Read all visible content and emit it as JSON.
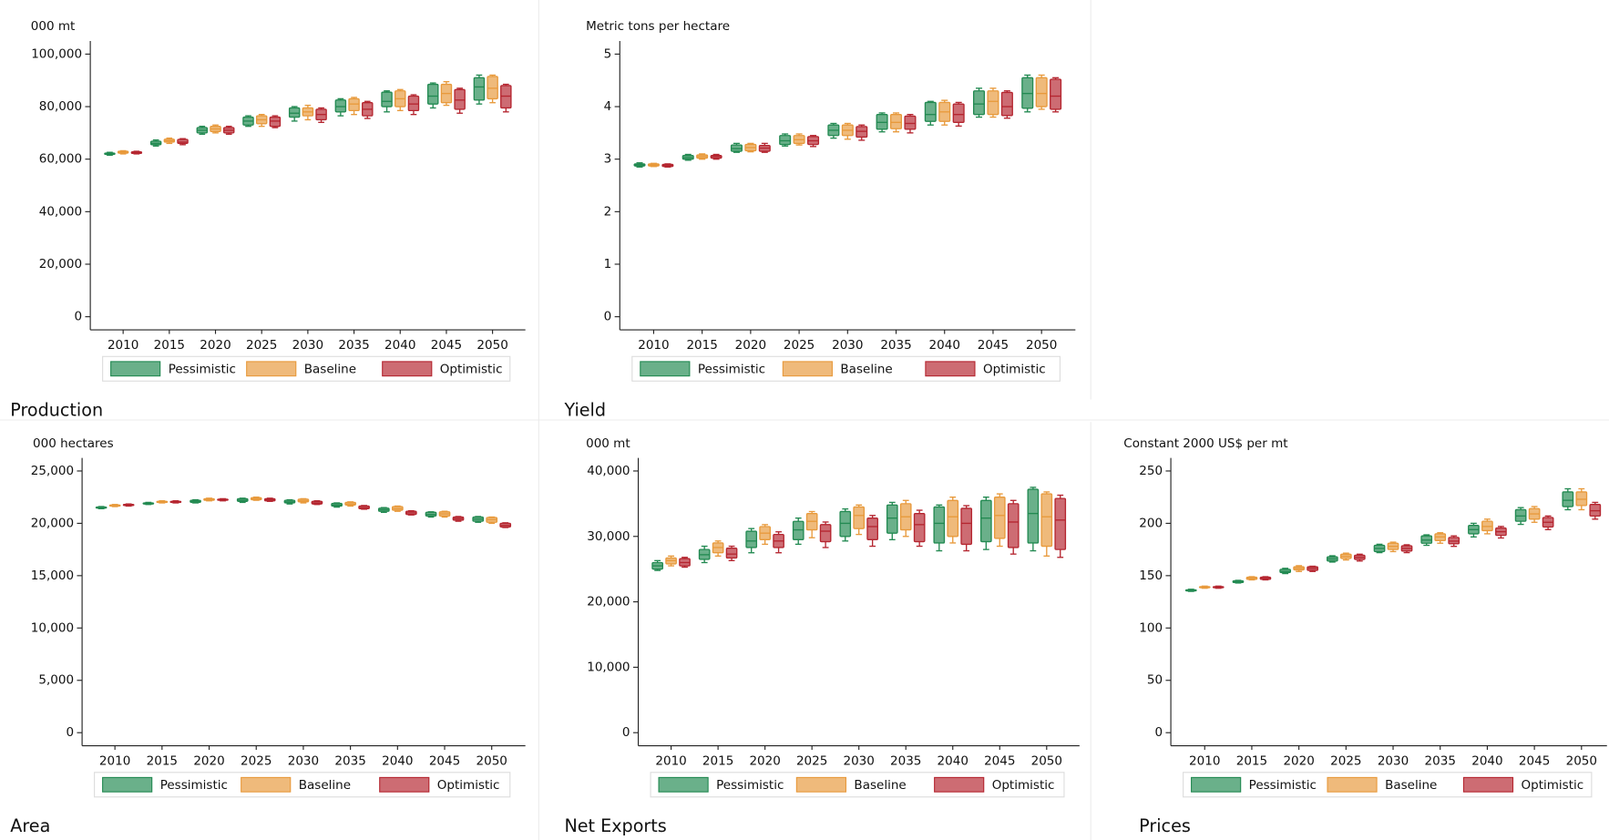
{
  "chart_data": [
    {
      "type": "box",
      "title": "Production",
      "ylabel": "000 mt",
      "categories": [
        "2010",
        "2015",
        "2020",
        "2025",
        "2030",
        "2035",
        "2040",
        "2045",
        "2050"
      ],
      "ylim": [
        -5000,
        105000
      ],
      "yticks": [
        0,
        {
          "value": 20000,
          "label": "20,000"
        },
        {
          "value": 40000,
          "label": "40,000"
        },
        {
          "value": 60000,
          "label": "60,000"
        },
        {
          "value": 80000,
          "label": "80,000"
        },
        {
          "value": 100000,
          "label": "100,000"
        }
      ],
      "series": [
        {
          "name": "Pessimistic",
          "color": "#238a52",
          "low": [
            61500,
            65000,
            69500,
            72500,
            74500,
            76500,
            78000,
            79500,
            81000
          ],
          "q1": [
            61800,
            65500,
            70000,
            73000,
            76000,
            78000,
            80000,
            81000,
            82500
          ],
          "median": [
            62000,
            66000,
            71000,
            74500,
            77500,
            80000,
            82000,
            84000,
            87500
          ],
          "q3": [
            62300,
            66800,
            72000,
            76000,
            79500,
            82500,
            85500,
            88500,
            91000
          ],
          "high": [
            62600,
            67300,
            72500,
            76500,
            80000,
            83000,
            86000,
            89000,
            92000
          ]
        },
        {
          "name": "Baseline",
          "color": "#e89a3c",
          "low": [
            62000,
            66000,
            70000,
            72500,
            75000,
            77000,
            78500,
            80500,
            81500
          ],
          "q1": [
            62300,
            66500,
            70500,
            73500,
            76500,
            78500,
            80000,
            81500,
            83000
          ],
          "median": [
            62600,
            67000,
            71500,
            75000,
            78000,
            81000,
            83000,
            85000,
            87000
          ],
          "q3": [
            63000,
            67600,
            72500,
            76500,
            79500,
            83000,
            86000,
            88500,
            91500
          ],
          "high": [
            63200,
            68000,
            73000,
            77000,
            80500,
            83500,
            86500,
            89500,
            92000
          ]
        },
        {
          "name": "Optimistic",
          "color": "#b52630",
          "low": [
            62000,
            65500,
            69500,
            72000,
            74000,
            75500,
            77000,
            77500,
            78000
          ],
          "q1": [
            62200,
            66000,
            70000,
            72500,
            75000,
            76500,
            78500,
            79000,
            79500
          ],
          "median": [
            62500,
            66500,
            71000,
            74500,
            77000,
            79000,
            81000,
            82500,
            84000
          ],
          "q3": [
            62800,
            67500,
            72000,
            76000,
            79000,
            81500,
            84000,
            86500,
            88000
          ],
          "high": [
            63000,
            67800,
            72500,
            76500,
            79500,
            82000,
            84500,
            87000,
            88500
          ]
        }
      ]
    },
    {
      "type": "box",
      "title": "Yield",
      "ylabel": "Metric tons per hectare",
      "categories": [
        "2010",
        "2015",
        "2020",
        "2025",
        "2030",
        "2035",
        "2040",
        "2045",
        "2050"
      ],
      "ylim": [
        -0.25,
        5.25
      ],
      "yticks": [
        0,
        1,
        2,
        3,
        4,
        5
      ],
      "series": [
        {
          "name": "Pessimistic",
          "color": "#238a52",
          "low": [
            2.85,
            2.98,
            3.13,
            3.25,
            3.4,
            3.52,
            3.65,
            3.8,
            3.9
          ],
          "q1": [
            2.87,
            3.0,
            3.15,
            3.28,
            3.45,
            3.57,
            3.72,
            3.85,
            3.97
          ],
          "median": [
            2.89,
            3.03,
            3.2,
            3.35,
            3.55,
            3.7,
            3.85,
            4.05,
            4.25
          ],
          "q3": [
            2.91,
            3.07,
            3.27,
            3.45,
            3.65,
            3.85,
            4.08,
            4.3,
            4.55
          ],
          "high": [
            2.93,
            3.09,
            3.3,
            3.48,
            3.68,
            3.88,
            4.1,
            4.35,
            4.6
          ]
        },
        {
          "name": "Baseline",
          "color": "#e89a3c",
          "low": [
            2.86,
            3.0,
            3.14,
            3.27,
            3.38,
            3.52,
            3.65,
            3.8,
            3.95
          ],
          "q1": [
            2.87,
            3.02,
            3.16,
            3.3,
            3.45,
            3.58,
            3.72,
            3.85,
            4.0
          ],
          "median": [
            2.89,
            3.05,
            3.22,
            3.37,
            3.55,
            3.7,
            3.9,
            4.1,
            4.25
          ],
          "q3": [
            2.91,
            3.08,
            3.28,
            3.45,
            3.65,
            3.85,
            4.08,
            4.3,
            4.55
          ],
          "high": [
            2.92,
            3.1,
            3.3,
            3.48,
            3.68,
            3.88,
            4.12,
            4.35,
            4.6
          ]
        },
        {
          "name": "Optimistic",
          "color": "#b52630",
          "low": [
            2.85,
            3.0,
            3.13,
            3.24,
            3.36,
            3.5,
            3.63,
            3.78,
            3.9
          ],
          "q1": [
            2.86,
            3.02,
            3.15,
            3.28,
            3.42,
            3.57,
            3.7,
            3.83,
            3.95
          ],
          "median": [
            2.88,
            3.05,
            3.21,
            3.35,
            3.53,
            3.68,
            3.85,
            4.0,
            4.2
          ],
          "q3": [
            2.9,
            3.07,
            3.26,
            3.43,
            3.62,
            3.82,
            4.05,
            4.27,
            4.52
          ],
          "high": [
            2.91,
            3.09,
            3.3,
            3.45,
            3.65,
            3.85,
            4.08,
            4.3,
            4.55
          ]
        }
      ]
    },
    {
      "type": "box",
      "title": "Area",
      "ylabel": "000 hectares",
      "categories": [
        "2010",
        "2015",
        "2020",
        "2025",
        "2030",
        "2035",
        "2040",
        "2045",
        "2050"
      ],
      "ylim": [
        -1250,
        26250
      ],
      "yticks": [
        0,
        {
          "value": 5000,
          "label": "5,000"
        },
        {
          "value": 10000,
          "label": "10,000"
        },
        {
          "value": 15000,
          "label": "15,000"
        },
        {
          "value": 20000,
          "label": "20,000"
        },
        {
          "value": 25000,
          "label": "25,000"
        }
      ],
      "series": [
        {
          "name": "Pessimistic",
          "color": "#238a52",
          "low": [
            21400,
            21800,
            21950,
            22000,
            21850,
            21550,
            21050,
            20600,
            20100
          ],
          "q1": [
            21450,
            21850,
            22000,
            22100,
            21950,
            21650,
            21150,
            20700,
            20200
          ],
          "median": [
            21500,
            21900,
            22100,
            22200,
            22050,
            21750,
            21300,
            20850,
            20400
          ],
          "q3": [
            21550,
            21950,
            22200,
            22350,
            22200,
            21900,
            21450,
            21050,
            20600
          ],
          "high": [
            21600,
            22000,
            22250,
            22400,
            22250,
            21950,
            21500,
            21100,
            20650
          ]
        },
        {
          "name": "Baseline",
          "color": "#e89a3c",
          "low": [
            21600,
            21950,
            22150,
            22200,
            21950,
            21650,
            21150,
            20600,
            20000
          ],
          "q1": [
            21650,
            22000,
            22200,
            22250,
            22050,
            21750,
            21250,
            20700,
            20100
          ],
          "median": [
            21700,
            22050,
            22300,
            22350,
            22150,
            21850,
            21400,
            20900,
            20350
          ],
          "q3": [
            21750,
            22100,
            22350,
            22450,
            22300,
            22000,
            21600,
            21100,
            20550
          ],
          "high": [
            21800,
            22150,
            22400,
            22500,
            22350,
            22050,
            21650,
            21150,
            20600
          ]
        },
        {
          "name": "Optimistic",
          "color": "#b52630",
          "low": [
            21650,
            21950,
            22150,
            22100,
            21800,
            21350,
            20800,
            20200,
            19600
          ],
          "q1": [
            21700,
            22000,
            22200,
            22150,
            21850,
            21400,
            20850,
            20300,
            19650
          ],
          "median": [
            21750,
            22050,
            22250,
            22250,
            21950,
            21500,
            21000,
            20450,
            19800
          ],
          "q3": [
            21800,
            22100,
            22300,
            22350,
            22100,
            21650,
            21150,
            20600,
            20000
          ],
          "high": [
            21850,
            22150,
            22350,
            22400,
            22150,
            21700,
            21200,
            20650,
            20050
          ]
        }
      ]
    },
    {
      "type": "box",
      "title": "Net Exports",
      "ylabel": "000 mt",
      "categories": [
        "2010",
        "2015",
        "2020",
        "2025",
        "2030",
        "2035",
        "2040",
        "2045",
        "2050"
      ],
      "ylim": [
        -2000,
        42000
      ],
      "yticks": [
        0,
        {
          "value": 10000,
          "label": "10,000"
        },
        {
          "value": 20000,
          "label": "20,000"
        },
        {
          "value": 30000,
          "label": "30,000"
        },
        {
          "value": 40000,
          "label": "40,000"
        }
      ],
      "series": [
        {
          "name": "Pessimistic",
          "color": "#238a52",
          "low": [
            24800,
            26000,
            27500,
            28800,
            29300,
            29500,
            27800,
            28000,
            27800
          ],
          "q1": [
            25000,
            26500,
            28300,
            29500,
            30000,
            30500,
            29000,
            29200,
            29000
          ],
          "median": [
            25500,
            27200,
            29300,
            31000,
            32000,
            32800,
            32000,
            32800,
            33500
          ],
          "q3": [
            26000,
            28000,
            30800,
            32300,
            33800,
            34800,
            34500,
            35500,
            37200
          ],
          "high": [
            26300,
            28500,
            31200,
            32800,
            34200,
            35200,
            34800,
            36000,
            37500
          ]
        },
        {
          "name": "Baseline",
          "color": "#e89a3c",
          "low": [
            25500,
            27000,
            28800,
            29800,
            30300,
            30000,
            29000,
            28500,
            27000
          ],
          "q1": [
            25800,
            27500,
            29500,
            31000,
            31200,
            31000,
            30000,
            29700,
            28500
          ],
          "median": [
            26300,
            28300,
            30500,
            32300,
            33200,
            33000,
            33000,
            33200,
            33000
          ],
          "q3": [
            26700,
            29000,
            31500,
            33500,
            34500,
            35000,
            35500,
            36000,
            36500
          ],
          "high": [
            27000,
            29300,
            31800,
            33800,
            34800,
            35500,
            36000,
            36500,
            36800
          ]
        },
        {
          "name": "Optimistic",
          "color": "#b52630",
          "low": [
            25300,
            26300,
            27500,
            28300,
            28500,
            28500,
            27800,
            27300,
            26800
          ],
          "q1": [
            25500,
            26700,
            28300,
            29200,
            29500,
            29200,
            28800,
            28300,
            28000
          ],
          "median": [
            26000,
            27300,
            29300,
            30800,
            31500,
            31800,
            32000,
            32200,
            32500
          ],
          "q3": [
            26600,
            28200,
            30300,
            31800,
            32800,
            33500,
            34300,
            35000,
            35800
          ],
          "high": [
            26800,
            28500,
            30700,
            32200,
            33200,
            34000,
            34700,
            35500,
            36300
          ]
        }
      ]
    },
    {
      "type": "box",
      "title": "Prices",
      "ylabel": "Constant 2000 US$ per mt",
      "categories": [
        "2010",
        "2015",
        "2020",
        "2025",
        "2030",
        "2035",
        "2040",
        "2045",
        "2050"
      ],
      "ylim": [
        -12.5,
        262.5
      ],
      "yticks": [
        0,
        50,
        100,
        150,
        200,
        250
      ],
      "series": [
        {
          "name": "Pessimistic",
          "color": "#238a52",
          "low": [
            135,
            143,
            152,
            163,
            172,
            179,
            187,
            199,
            213
          ],
          "q1": [
            135.5,
            143.5,
            153,
            164,
            173,
            181,
            190,
            202,
            216
          ],
          "median": [
            136,
            144,
            154,
            166,
            176,
            184,
            194,
            207,
            222
          ],
          "q3": [
            136.5,
            145,
            156,
            168,
            179,
            188,
            198,
            213,
            230
          ],
          "high": [
            137,
            145.5,
            157,
            169,
            180,
            189,
            200,
            215,
            233
          ]
        },
        {
          "name": "Baseline",
          "color": "#e89a3c",
          "low": [
            138,
            146,
            154,
            165,
            173,
            181,
            190,
            201,
            213
          ],
          "q1": [
            138.5,
            146.5,
            155.5,
            166.5,
            175,
            183.5,
            193,
            204,
            217
          ],
          "median": [
            139,
            147.5,
            157,
            168.5,
            178,
            187,
            197,
            209,
            223
          ],
          "q3": [
            139.5,
            148.5,
            158.5,
            170.5,
            181,
            190,
            202,
            214,
            230
          ],
          "high": [
            140,
            149,
            159.5,
            171.5,
            182,
            191,
            204,
            216,
            233
          ]
        },
        {
          "name": "Optimistic",
          "color": "#b52630",
          "low": [
            138,
            146,
            154,
            164,
            172,
            178,
            186,
            194,
            204
          ],
          "q1": [
            138.5,
            146.5,
            155,
            165.5,
            173.5,
            180.5,
            188.5,
            196.5,
            207
          ],
          "median": [
            139,
            147.5,
            157,
            167.5,
            176,
            183,
            192,
            201,
            212
          ],
          "q3": [
            139.5,
            148.5,
            158.5,
            169.5,
            178.5,
            186.5,
            195.5,
            205.5,
            218
          ],
          "high": [
            140,
            149,
            159,
            170.5,
            179.5,
            188,
            197,
            207,
            220
          ]
        }
      ]
    }
  ]
}
